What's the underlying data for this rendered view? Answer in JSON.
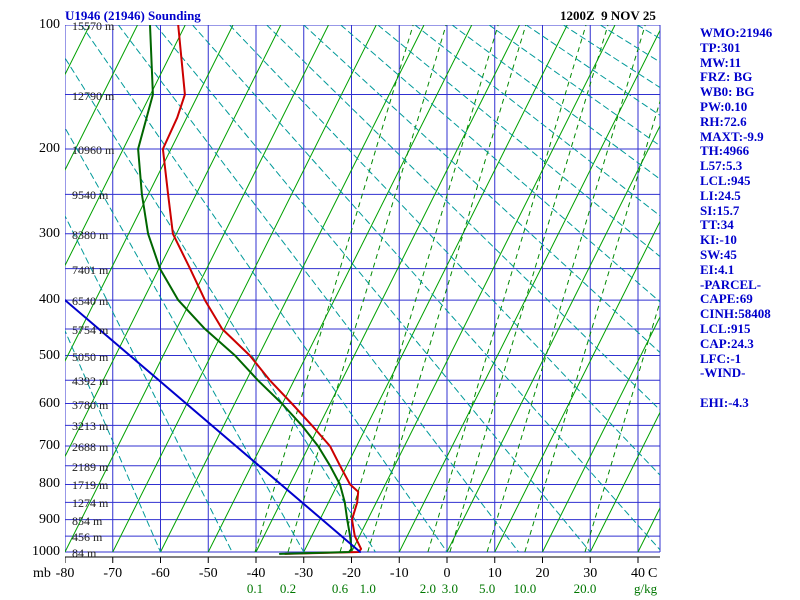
{
  "header": {
    "title": "U1946 (21946) Sounding",
    "datetime": "1200Z  9 NOV 25"
  },
  "stats_panel": {
    "lines": [
      "WMO:21946",
      "TP:301",
      "MW:11",
      "FRZ: BG",
      "WB0: BG",
      "PW:0.10",
      "RH:72.6",
      "MAXT:-9.9",
      "TH:4966",
      "L57:5.3",
      "LCL:945",
      "LI:24.5",
      "SI:15.7",
      "TT:34",
      "KI:-10",
      "SW:45",
      "EI:4.1",
      "-PARCEL-",
      "CAPE:69",
      "CINH:58408",
      "LCL:915",
      "CAP:24.3",
      "LFC:-1",
      "-WIND-",
      "",
      "EHI:-4.3"
    ]
  },
  "chart_data": {
    "type": "line",
    "subtype": "skew-t-log-p-sounding",
    "title": "U1946 (21946) Sounding",
    "datetime": "1200Z 9 NOV 25",
    "station_wmo": "21946",
    "x_coordinate_note": "trace x values are positions read on the bottom degC axis of the skewed plot",
    "axes": {
      "pressure_mb": {
        "unit": "mb",
        "min": 100,
        "max": 1000,
        "ticks": [
          100,
          200,
          300,
          400,
          500,
          600,
          700,
          800,
          900,
          1000
        ],
        "isobar_step": 50,
        "scale": "pressure^0.286"
      },
      "temperature_c": {
        "unit": "C",
        "min": -80,
        "max": 40,
        "ticks": [
          -80,
          -70,
          -60,
          -50,
          -40,
          -30,
          -20,
          -10,
          0,
          10,
          20,
          30,
          40
        ]
      },
      "mixing_ratio_gkg": {
        "unit": "g/kg",
        "labels": [
          {
            "label": "0.1",
            "t_axis": -40.2
          },
          {
            "label": "0.2",
            "t_axis": -33.3
          },
          {
            "label": "0.6",
            "t_axis": -22.4
          },
          {
            "label": "1.0",
            "t_axis": -16.6
          },
          {
            "label": "2.0",
            "t_axis": -4.0
          },
          {
            "label": "3.0",
            "t_axis": 0.6
          },
          {
            "label": "5.0",
            "t_axis": 8.4
          },
          {
            "label": "10.0",
            "t_axis": 16.3
          },
          {
            "label": "20.0",
            "t_axis": 28.9
          }
        ]
      }
    },
    "height_labels": [
      {
        "p": 100,
        "text": "15570 m"
      },
      {
        "p": 150,
        "text": "12790 m"
      },
      {
        "p": 200,
        "text": "10960 m"
      },
      {
        "p": 250,
        "text": "9540 m"
      },
      {
        "p": 300,
        "text": "8380 m"
      },
      {
        "p": 350,
        "text": "7401 m"
      },
      {
        "p": 400,
        "text": "6540 m"
      },
      {
        "p": 450,
        "text": "5754 m"
      },
      {
        "p": 500,
        "text": "5050 m"
      },
      {
        "p": 550,
        "text": "4392 m"
      },
      {
        "p": 600,
        "text": "3780 m"
      },
      {
        "p": 650,
        "text": "3213 m"
      },
      {
        "p": 700,
        "text": "2688 m"
      },
      {
        "p": 750,
        "text": "2189 m"
      },
      {
        "p": 800,
        "text": "1719 m"
      },
      {
        "p": 850,
        "text": "1274 m"
      },
      {
        "p": 900,
        "text": "854 m"
      },
      {
        "p": 950,
        "text": "456 m"
      },
      {
        "p": 1000,
        "text": "84 m"
      }
    ],
    "background": {
      "isotherms_c": [
        -130,
        -120,
        -110,
        -100,
        -90,
        -80,
        -70,
        -60,
        -50,
        -40,
        -30,
        -20,
        -10,
        0,
        10,
        20,
        30,
        40
      ],
      "skew_dx_per_dy": 0.5,
      "mixing_dx_per_dy": 0.3,
      "dry_adiabats_theta_c": [
        -60,
        -45,
        -30,
        -15,
        0,
        15,
        30,
        45,
        60,
        75,
        90,
        105,
        120,
        135,
        150,
        165,
        180,
        195,
        210,
        225,
        240
      ]
    },
    "colors": {
      "grid_blue": "#3030D0",
      "isotherm_green": "#00A000",
      "mixing_green_dashed": "#008800",
      "adiabat_teal_dashed": "#009999",
      "temperature_red": "#CC0000",
      "dewpoint_green": "#006600",
      "parcel_blue": "#0000CC",
      "title_blue": "#0000CC",
      "label_green": "#007700",
      "text_black": "#000000"
    },
    "traces": {
      "temperature": {
        "name": "temperature",
        "color": "#CC0000",
        "width": 2,
        "points": [
          [
            100,
            -56.3
          ],
          [
            150,
            -54.9
          ],
          [
            170,
            -56.5
          ],
          [
            200,
            -59.5
          ],
          [
            250,
            -58.4
          ],
          [
            300,
            -57.4
          ],
          [
            350,
            -53.8
          ],
          [
            400,
            -50.7
          ],
          [
            450,
            -47.1
          ],
          [
            500,
            -41.3
          ],
          [
            550,
            -37.1
          ],
          [
            600,
            -32.5
          ],
          [
            650,
            -28.3
          ],
          [
            700,
            -24.5
          ],
          [
            750,
            -22.4
          ],
          [
            800,
            -20.3
          ],
          [
            820,
            -18.6
          ],
          [
            850,
            -18.8
          ],
          [
            900,
            -19.9
          ],
          [
            950,
            -19.3
          ],
          [
            990,
            -18.0
          ],
          [
            1000,
            -18.5
          ],
          [
            1006,
            -33.9
          ]
        ]
      },
      "dewpoint": {
        "name": "dewpoint",
        "color": "#006600",
        "width": 2,
        "points": [
          [
            100,
            -62.2
          ],
          [
            150,
            -61.6
          ],
          [
            200,
            -64.7
          ],
          [
            250,
            -63.9
          ],
          [
            300,
            -62.6
          ],
          [
            350,
            -60.1
          ],
          [
            400,
            -56.3
          ],
          [
            450,
            -50.7
          ],
          [
            500,
            -44.4
          ],
          [
            550,
            -39.6
          ],
          [
            600,
            -34.6
          ],
          [
            650,
            -30.4
          ],
          [
            700,
            -27.0
          ],
          [
            750,
            -24.5
          ],
          [
            800,
            -22.4
          ],
          [
            850,
            -21.4
          ],
          [
            900,
            -20.9
          ],
          [
            950,
            -20.3
          ],
          [
            990,
            -20.0
          ],
          [
            1000,
            -20.5
          ],
          [
            1006,
            -35.0
          ]
        ]
      },
      "parcel": {
        "name": "parcel-ascent",
        "color": "#0000CC",
        "width": 2,
        "points": [
          [
            1000,
            -18.2
          ],
          [
            400,
            -80.0
          ]
        ]
      }
    }
  }
}
